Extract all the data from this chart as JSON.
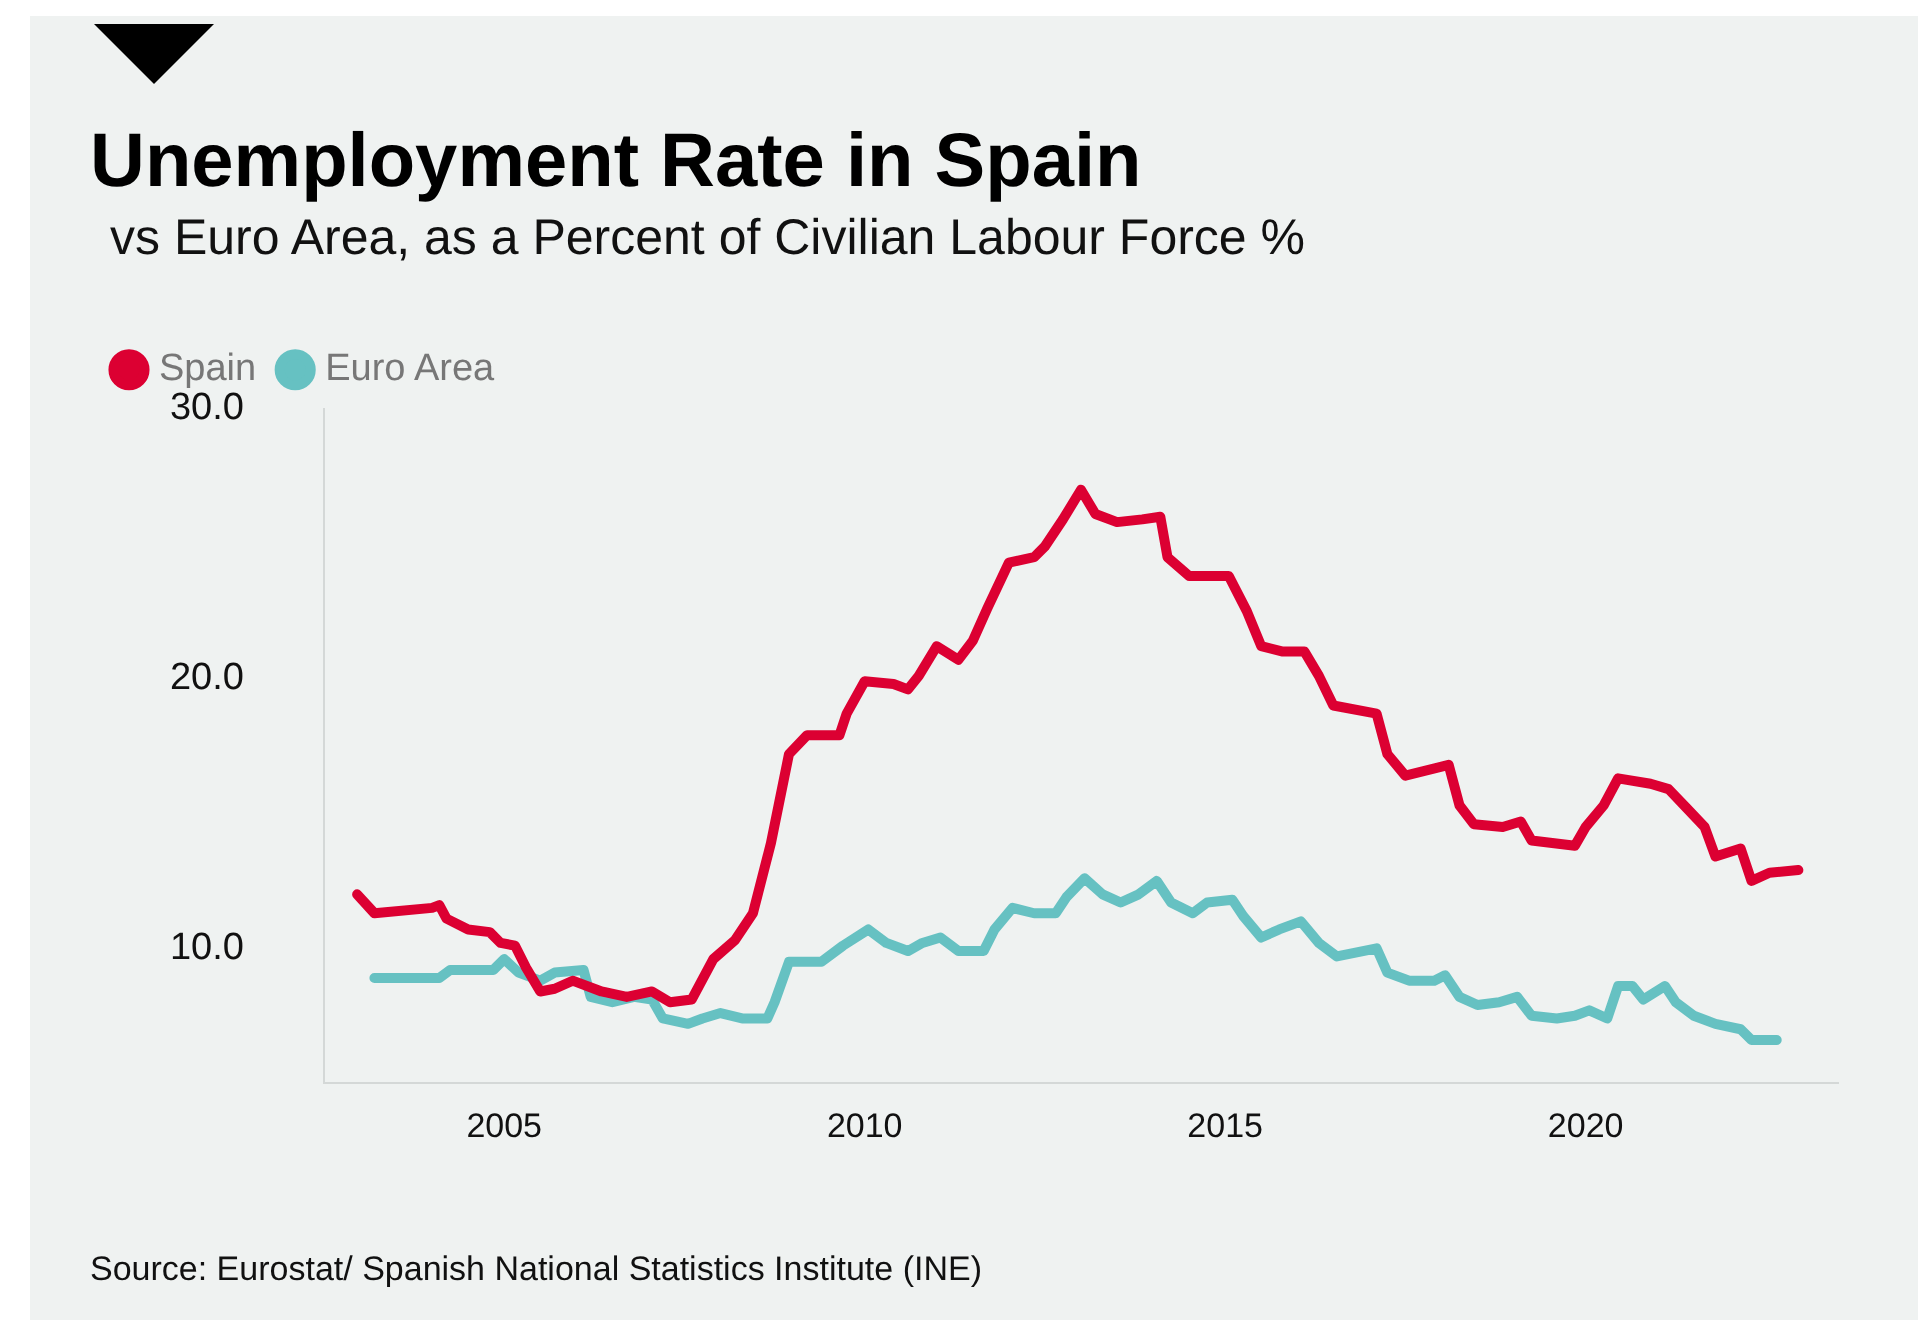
{
  "chart_data": {
    "type": "line",
    "title": "Unemployment Rate in Spain",
    "subtitle": "vs Euro Area, as a Percent of Civilian Labour Force %",
    "annotations": [
      "Source: Eurostat/ Spanish National Statistics Institute (INE)"
    ],
    "series": [
      {
        "name": "Spain",
        "color": "#dc0032",
        "x": [
          2002.96,
          2003.2,
          2004.0,
          2004.1,
          2004.2,
          2004.5,
          2004.8,
          2004.95,
          2005.15,
          2005.3,
          2005.5,
          2005.7,
          2005.95,
          2006.35,
          2006.7,
          2007.05,
          2007.3,
          2007.6,
          2007.7,
          2007.9,
          2008.2,
          2008.45,
          2008.7,
          2008.95,
          2009.2,
          2009.65,
          2009.75,
          2010.0,
          2010.4,
          2010.6,
          2010.75,
          2011.0,
          2011.3,
          2011.5,
          2011.7,
          2012.0,
          2012.35,
          2012.5,
          2012.75,
          2013.0,
          2013.2,
          2013.5,
          2013.85,
          2014.1,
          2014.2,
          2014.5,
          2015.05,
          2015.3,
          2015.5,
          2015.8,
          2016.1,
          2016.3,
          2016.5,
          2017.1,
          2017.25,
          2017.5,
          2018.1,
          2018.25,
          2018.45,
          2018.85,
          2019.1,
          2019.25,
          2019.85,
          2020.0,
          2020.25,
          2020.45,
          2020.9,
          2021.15,
          2021.4,
          2021.65,
          2021.8,
          2022.15,
          2022.3,
          2022.55,
          2022.95
        ],
        "values": [
          12.0,
          11.3,
          11.5,
          11.6,
          11.1,
          10.7,
          10.6,
          10.2,
          10.1,
          9.3,
          8.4,
          8.5,
          8.8,
          8.4,
          8.2,
          8.4,
          8.0,
          8.1,
          8.6,
          9.6,
          10.3,
          11.3,
          13.9,
          17.2,
          17.9,
          17.9,
          18.7,
          19.9,
          19.8,
          19.6,
          20.1,
          21.2,
          20.7,
          21.4,
          22.6,
          24.3,
          24.5,
          24.9,
          25.9,
          27.0,
          26.1,
          25.8,
          25.9,
          26.0,
          24.5,
          23.8,
          23.8,
          22.5,
          21.2,
          21.0,
          21.0,
          20.1,
          19.0,
          18.7,
          17.2,
          16.4,
          16.8,
          15.3,
          14.6,
          14.5,
          14.7,
          14.0,
          13.8,
          14.5,
          15.3,
          16.3,
          16.1,
          15.9,
          15.2,
          14.5,
          13.4,
          13.7,
          12.5,
          12.8,
          12.9
        ]
      },
      {
        "name": "Euro Area",
        "color": "#66c1c2",
        "x": [
          2003.2,
          2004.1,
          2004.25,
          2004.85,
          2005.0,
          2005.2,
          2005.5,
          2005.7,
          2006.1,
          2006.2,
          2006.5,
          2006.8,
          2007.05,
          2007.2,
          2007.55,
          2007.75,
          2008.0,
          2008.3,
          2008.65,
          2008.75,
          2008.95,
          2009.4,
          2009.7,
          2010.05,
          2010.3,
          2010.6,
          2010.8,
          2011.05,
          2011.3,
          2011.65,
          2011.8,
          2012.05,
          2012.35,
          2012.65,
          2012.8,
          2013.05,
          2013.3,
          2013.55,
          2013.8,
          2014.05,
          2014.25,
          2014.55,
          2014.75,
          2015.1,
          2015.25,
          2015.5,
          2015.75,
          2016.05,
          2016.3,
          2016.55,
          2017.1,
          2017.25,
          2017.55,
          2017.9,
          2018.05,
          2018.25,
          2018.5,
          2018.8,
          2019.05,
          2019.25,
          2019.6,
          2019.85,
          2020.05,
          2020.3,
          2020.45,
          2020.65,
          2020.8,
          2021.1,
          2021.25,
          2021.5,
          2021.8,
          2022.15,
          2022.3,
          2022.65
        ],
        "values": [
          8.9,
          8.9,
          9.2,
          9.2,
          9.6,
          9.1,
          8.8,
          9.1,
          9.2,
          8.2,
          8.0,
          8.2,
          8.1,
          7.4,
          7.2,
          7.4,
          7.6,
          7.4,
          7.4,
          8.0,
          9.5,
          9.5,
          10.1,
          10.7,
          10.2,
          9.9,
          10.2,
          10.4,
          9.9,
          9.9,
          10.7,
          11.5,
          11.3,
          11.3,
          11.9,
          12.6,
          12.0,
          11.7,
          12.0,
          12.5,
          11.7,
          11.3,
          11.7,
          11.8,
          11.2,
          10.4,
          10.7,
          11.0,
          10.2,
          9.7,
          10.0,
          9.1,
          8.8,
          8.8,
          9.0,
          8.2,
          7.9,
          8.0,
          8.2,
          7.5,
          7.4,
          7.5,
          7.7,
          7.4,
          8.6,
          8.6,
          8.1,
          8.6,
          8.0,
          7.5,
          7.2,
          7.0,
          6.6,
          6.6
        ]
      }
    ],
    "xlim": [
      2002.5,
      2023.5
    ],
    "xticks": [
      2005,
      2010,
      2015,
      2020
    ],
    "ylim": [
      5,
      30
    ],
    "yticks": [
      {
        "value": 10,
        "label": "10.0"
      },
      {
        "value": 20,
        "label": "20.0"
      },
      {
        "value": 30,
        "label": "30.0"
      }
    ],
    "grid": false,
    "legend": "top left",
    "marker": "none",
    "line_style": "solid"
  }
}
